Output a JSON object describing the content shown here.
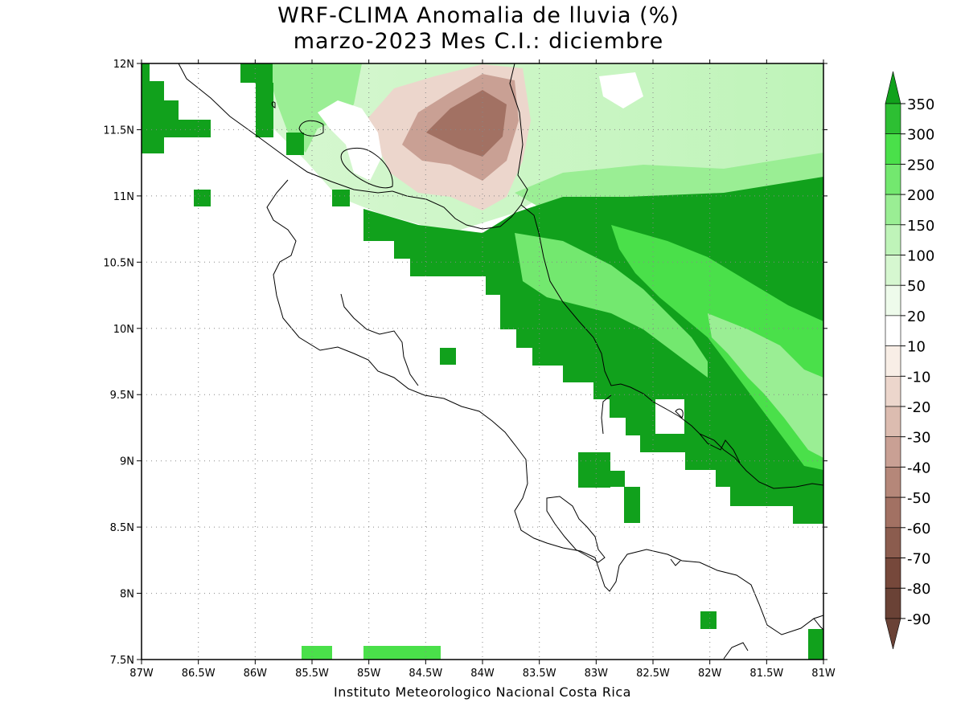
{
  "title": {
    "line1": "WRF-CLIMA Anomalia de lluvia (%)",
    "line2": "marzo-2023 Mes C.I.: diciembre"
  },
  "credit": "Instituto Meteorologico Nacional Costa Rica",
  "map": {
    "lon_range": [
      -87,
      -81
    ],
    "lat_range": [
      7.5,
      12
    ],
    "x_tick_labels": [
      "87W",
      "86.5W",
      "86W",
      "85.5W",
      "85W",
      "84.5W",
      "84W",
      "83.5W",
      "83W",
      "82.5W",
      "82W",
      "81.5W",
      "81W"
    ],
    "y_tick_labels": [
      "12N",
      "11.5N",
      "11N",
      "10.5N",
      "10N",
      "9.5N",
      "9N",
      "8.5N",
      "8N",
      "7.5N"
    ],
    "grid": "dotted"
  },
  "legend": {
    "labels": [
      "350",
      "300",
      "250",
      "200",
      "150",
      "100",
      "50",
      "20",
      "10",
      "-10",
      "-20",
      "-30",
      "-40",
      "-50",
      "-60",
      "-70",
      "-80",
      "-90"
    ],
    "colors": [
      "#11a11c",
      "#2dbf33",
      "#4ae04a",
      "#73e86f",
      "#9aee94",
      "#bff4b9",
      "#d6f7d0",
      "#eefbeb",
      "#ffffff",
      "#f8eee6",
      "#ecd6cc",
      "#dcbcb0",
      "#c9a094",
      "#b58779",
      "#a27163",
      "#8b5c4e",
      "#76483b",
      "#6a4236"
    ]
  },
  "colors": {
    "strong_wet": "#11a11c",
    "wet": "#4ae04a",
    "light_wet": "#bff4b9",
    "dry": "#b58779"
  }
}
